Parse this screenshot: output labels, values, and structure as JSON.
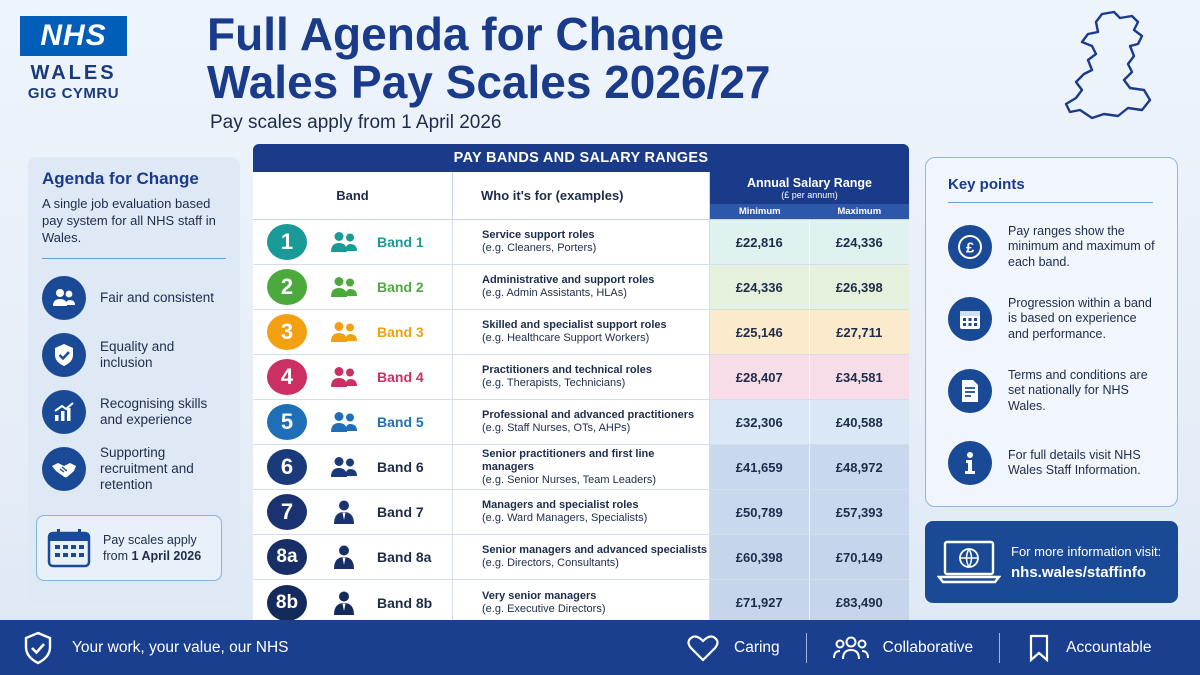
{
  "logo": {
    "nhs": "NHS",
    "wales": "WALES",
    "gig": "GIG CYMRU"
  },
  "header": {
    "title_line1": "Full Agenda for Change",
    "title_line2": "Wales Pay Scales 2026/27",
    "subtitle": "Pay scales apply from 1 April 2026"
  },
  "left_panel": {
    "title": "Agenda for Change",
    "description": "A single job evaluation based pay system for all NHS staff in Wales.",
    "items": [
      {
        "icon": "people-icon",
        "text": "Fair and consistent"
      },
      {
        "icon": "shield-check-icon",
        "text": "Equality and inclusion"
      },
      {
        "icon": "growth-chart-icon",
        "text": "Recognising skills and experience"
      },
      {
        "icon": "handshake-icon",
        "text": "Supporting recruitment and retention"
      }
    ],
    "date_note_lead": "Pay scales apply",
    "date_note_from": "from ",
    "date_note_date": "1 April 2026"
  },
  "table": {
    "heading": "PAY BANDS AND SALARY RANGES",
    "col_band": "Band",
    "col_who": "Who it's for (examples)",
    "col_salary": "Annual Salary Range",
    "col_salary_sub": "(£ per annum)",
    "col_min": "Minimum",
    "col_max": "Maximum",
    "rows": [
      {
        "num": "1",
        "label": "Band 1",
        "color": "#1a9a96",
        "bg": "#dff2ef",
        "icon": "people-icon",
        "title": "Service support roles",
        "examples": "(e.g. Cleaners, Porters)",
        "min": "£22,816",
        "max": "£24,336"
      },
      {
        "num": "2",
        "label": "Band 2",
        "color": "#4caa3c",
        "bg": "#e5f1dc",
        "icon": "people-icon",
        "title": "Administrative and support roles",
        "examples": "(e.g. Admin Assistants, HLAs)",
        "min": "£24,336",
        "max": "£26,398"
      },
      {
        "num": "3",
        "label": "Band 3",
        "color": "#f2a012",
        "bg": "#fbeacb",
        "icon": "people-icon",
        "title": "Skilled and specialist support roles",
        "examples": "(e.g. Healthcare Support Workers)",
        "min": "£25,146",
        "max": "£27,711"
      },
      {
        "num": "4",
        "label": "Band 4",
        "color": "#cc2f63",
        "bg": "#f7dde8",
        "icon": "people-icon",
        "title": "Practitioners and technical roles",
        "examples": "(e.g. Therapists, Technicians)",
        "min": "£28,407",
        "max": "£34,581"
      },
      {
        "num": "5",
        "label": "Band 5",
        "color": "#1f6fb8",
        "bg": "#d9e7f6",
        "icon": "people-icon",
        "title": "Professional and advanced practitioners",
        "examples": "(e.g. Staff Nurses, OTs, AHPs)",
        "min": "£32,306",
        "max": "£40,588"
      },
      {
        "num": "6",
        "label": "Band 6",
        "color": "#1a3a7a",
        "bg": "#c9d8ec",
        "icon": "people-icon",
        "title": "Senior practitioners and first line managers",
        "examples": "(e.g. Senior Nurses, Team Leaders)",
        "min": "£41,659",
        "max": "£48,972"
      },
      {
        "num": "7",
        "label": "Band 7",
        "color": "#1a3370",
        "bg": "#c9d8ec",
        "icon": "manager-icon",
        "title": "Managers and specialist roles",
        "examples": "(e.g. Ward Managers, Specialists)",
        "min": "£50,789",
        "max": "£57,393"
      },
      {
        "num": "8a",
        "label": "Band 8a",
        "color": "#172e66",
        "bg": "#c6d5ea",
        "icon": "manager-icon",
        "title": "Senior managers and advanced specialists",
        "examples": "(e.g. Directors, Consultants)",
        "min": "£60,398",
        "max": "£70,149"
      },
      {
        "num": "8b",
        "label": "Band 8b",
        "color": "#14295c",
        "bg": "#c6d5ea",
        "icon": "manager-icon",
        "title": "Very senior managers",
        "examples": "(e.g. Executive Directors)",
        "min": "£71,927",
        "max": "£83,490"
      }
    ]
  },
  "key_points": {
    "title": "Key points",
    "items": [
      {
        "icon": "pound-icon",
        "text": "Pay ranges show the minimum and maximum of each band."
      },
      {
        "icon": "calendar-icon",
        "text": "Progression within a band is based on experience and performance."
      },
      {
        "icon": "document-icon",
        "text": "Terms and conditions are set nationally for NHS Wales."
      },
      {
        "icon": "info-icon",
        "text": "For full details visit NHS Wales Staff Information."
      }
    ]
  },
  "info_box": {
    "lead": "For more information visit:",
    "link": "nhs.wales/staffinfo"
  },
  "footer": {
    "slogan": "Your work, your value, our NHS",
    "values": [
      "Caring",
      "Collaborative",
      "Accountable"
    ]
  },
  "colors": {
    "nhs_blue": "#005eb8",
    "navy": "#1a3a8a",
    "footer": "#1a3f8f"
  }
}
